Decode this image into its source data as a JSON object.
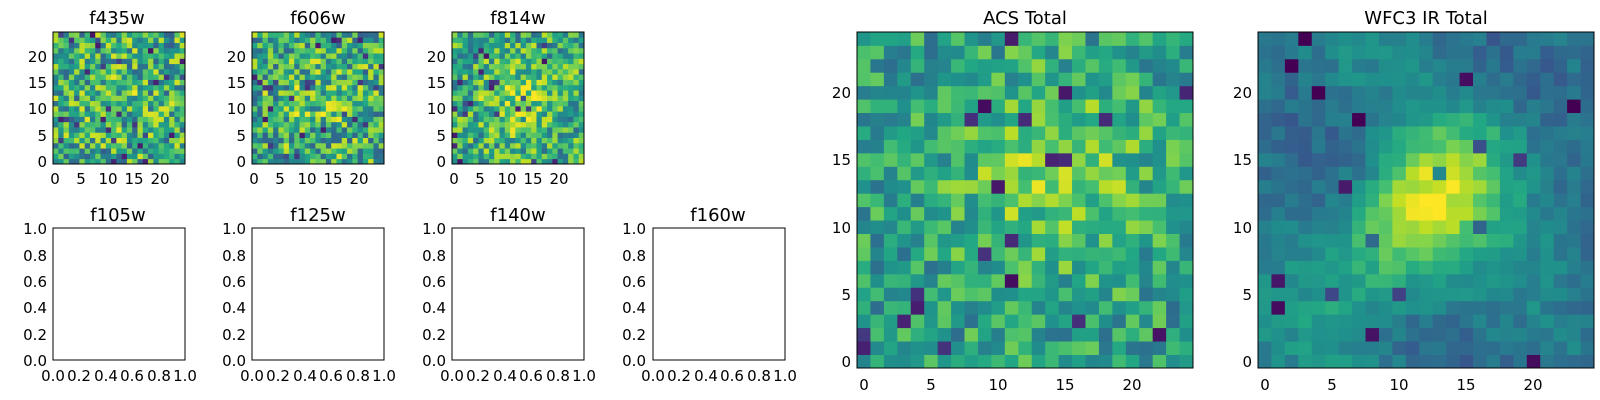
{
  "figure": {
    "colormap": "viridis",
    "background": "#ffffff"
  },
  "chart_data": [
    {
      "type": "heatmap",
      "title": "f435w",
      "xticks": [
        "0",
        "5",
        "10",
        "15",
        "20"
      ],
      "yticks": [
        "0",
        "5",
        "10",
        "15",
        "20"
      ],
      "xlim": [
        -0.5,
        24.5
      ],
      "ylim": [
        -0.5,
        24.5
      ],
      "grid_size": [
        25,
        25
      ],
      "seed": 11,
      "blob": 0.05,
      "noise": 0.25,
      "floor": 0.0,
      "vmin": 0.0,
      "vmax": 1.0,
      "style": "noisy-bright"
    },
    {
      "type": "heatmap",
      "title": "f606w",
      "xticks": [
        "0",
        "5",
        "10",
        "15",
        "20"
      ],
      "yticks": [
        "0",
        "5",
        "10",
        "15",
        "20"
      ],
      "xlim": [
        -0.5,
        24.5
      ],
      "ylim": [
        -0.5,
        24.5
      ],
      "grid_size": [
        25,
        25
      ],
      "seed": 23,
      "blob": 0.1,
      "noise": 0.25,
      "floor": 0.0,
      "vmin": 0.0,
      "vmax": 1.0,
      "style": "noisy-bright"
    },
    {
      "type": "heatmap",
      "title": "f814w",
      "xticks": [
        "0",
        "5",
        "10",
        "15",
        "20"
      ],
      "yticks": [
        "0",
        "5",
        "10",
        "15",
        "20"
      ],
      "xlim": [
        -0.5,
        24.5
      ],
      "ylim": [
        -0.5,
        24.5
      ],
      "grid_size": [
        25,
        25
      ],
      "seed": 37,
      "blob": 0.2,
      "noise": 0.22,
      "floor": 0.0,
      "vmin": 0.0,
      "vmax": 1.0,
      "style": "noisy-bright"
    },
    {
      "type": "empty",
      "title": "f105w",
      "xticks": [
        "0.0",
        "0.2",
        "0.4",
        "0.6",
        "0.8",
        "1.0"
      ],
      "yticks": [
        "0.0",
        "0.2",
        "0.4",
        "0.6",
        "0.8",
        "1.0"
      ],
      "xlim": [
        0,
        1
      ],
      "ylim": [
        0,
        1
      ]
    },
    {
      "type": "empty",
      "title": "f125w",
      "xticks": [
        "0.0",
        "0.2",
        "0.4",
        "0.6",
        "0.8",
        "1.0"
      ],
      "yticks": [
        "0.0",
        "0.2",
        "0.4",
        "0.6",
        "0.8",
        "1.0"
      ],
      "xlim": [
        0,
        1
      ],
      "ylim": [
        0,
        1
      ]
    },
    {
      "type": "empty",
      "title": "f140w",
      "xticks": [
        "0.0",
        "0.2",
        "0.4",
        "0.6",
        "0.8",
        "1.0"
      ],
      "yticks": [
        "0.0",
        "0.2",
        "0.4",
        "0.6",
        "0.8",
        "1.0"
      ],
      "xlim": [
        0,
        1
      ],
      "ylim": [
        0,
        1
      ]
    },
    {
      "type": "empty",
      "title": "f160w",
      "xticks": [
        "0.0",
        "0.2",
        "0.4",
        "0.6",
        "0.8",
        "1.0"
      ],
      "yticks": [
        "0.0",
        "0.2",
        "0.4",
        "0.6",
        "0.8",
        "1.0"
      ],
      "xlim": [
        0,
        1
      ],
      "ylim": [
        0,
        1
      ]
    },
    {
      "type": "heatmap",
      "title": "ACS Total",
      "xticks": [
        "0",
        "5",
        "10",
        "15",
        "20"
      ],
      "yticks": [
        "0",
        "5",
        "10",
        "15",
        "20"
      ],
      "xlim": [
        -0.5,
        24.5
      ],
      "ylim": [
        -0.5,
        24.5
      ],
      "grid_size": [
        25,
        25
      ],
      "seed": 51,
      "blob": 0.25,
      "noise": 0.18,
      "floor": 0.0,
      "vmin": 0.0,
      "vmax": 1.0,
      "style": "noisy-mid"
    },
    {
      "type": "heatmap",
      "title": "WFC3 IR Total",
      "xticks": [
        "0",
        "5",
        "10",
        "15",
        "20"
      ],
      "yticks": [
        "0",
        "5",
        "10",
        "15",
        "20"
      ],
      "xlim": [
        -0.5,
        24.5
      ],
      "ylim": [
        -0.5,
        24.5
      ],
      "grid_size": [
        25,
        25
      ],
      "seed": 73,
      "blob": 0.7,
      "noise": 0.08,
      "floor": 0.0,
      "vmin": 0.0,
      "vmax": 1.0,
      "style": "smooth-blob"
    }
  ]
}
